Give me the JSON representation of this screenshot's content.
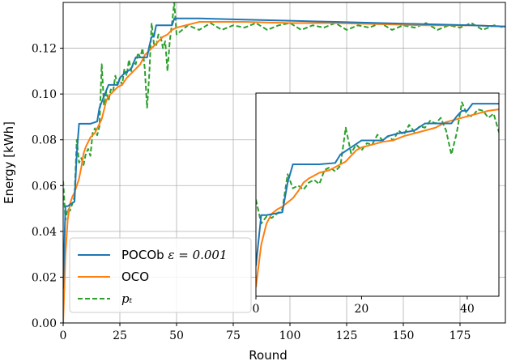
{
  "chart_data": {
    "type": "line",
    "xlabel": "Round",
    "ylabel": "Energy [kWh]",
    "xlim": [
      0,
      195
    ],
    "ylim": [
      0,
      0.14
    ],
    "xticks": [
      0,
      25,
      50,
      75,
      100,
      125,
      150,
      175
    ],
    "yticks": [
      0.0,
      0.02,
      0.04,
      0.06,
      0.08,
      0.1,
      0.12
    ],
    "ytick_labels": [
      "0.00",
      "0.02",
      "0.04",
      "0.06",
      "0.08",
      "0.10",
      "0.12"
    ],
    "grid": true,
    "legend": {
      "placement": "lower-left",
      "entries": [
        {
          "name": "POCOb ε = 0.001",
          "label_text": "POCOb",
          "label_math": "ε = 0.001",
          "color": "#1f77b4",
          "style": "solid"
        },
        {
          "name": "OCO",
          "label_text": "OCO",
          "label_math": "",
          "color": "#ff7f0e",
          "style": "solid"
        },
        {
          "name": "p_t",
          "label_text": "",
          "label_math": "pₜ",
          "color": "#2ca02c",
          "style": "dashed"
        }
      ]
    },
    "series": [
      {
        "name": "POCOb ε = 0.001",
        "color": "#1f77b4",
        "style": "solid",
        "x": [
          0,
          1,
          2,
          5,
          6,
          7,
          11,
          12,
          15,
          16,
          18,
          20,
          24,
          25,
          27,
          30,
          32,
          37,
          38,
          39,
          40,
          41,
          45,
          46,
          47,
          48,
          49,
          60,
          80,
          100,
          120,
          140,
          160,
          180,
          195
        ],
        "y": [
          0.015,
          0.051,
          0.051,
          0.053,
          0.074,
          0.087,
          0.087,
          0.087,
          0.088,
          0.094,
          0.099,
          0.104,
          0.104,
          0.107,
          0.109,
          0.111,
          0.116,
          0.116,
          0.121,
          0.125,
          0.125,
          0.13,
          0.13,
          0.13,
          0.13,
          0.13,
          0.133,
          0.133,
          0.1325,
          0.132,
          0.1315,
          0.131,
          0.1305,
          0.13,
          0.1295
        ]
      },
      {
        "name": "OCO",
        "color": "#ff7f0e",
        "style": "solid",
        "x": [
          0,
          1,
          2,
          3,
          4,
          5,
          6,
          7,
          8,
          9,
          10,
          11,
          12,
          13,
          14,
          15,
          16,
          17,
          18,
          19,
          20,
          22,
          24,
          26,
          28,
          30,
          32,
          34,
          36,
          38,
          40,
          42,
          44,
          46,
          48,
          50,
          60,
          80,
          100,
          120,
          140,
          160,
          180,
          195
        ],
        "y": [
          0.0,
          0.03,
          0.045,
          0.052,
          0.055,
          0.057,
          0.06,
          0.063,
          0.068,
          0.074,
          0.077,
          0.079,
          0.081,
          0.082,
          0.083,
          0.085,
          0.087,
          0.089,
          0.093,
          0.097,
          0.099,
          0.101,
          0.103,
          0.104,
          0.107,
          0.109,
          0.111,
          0.113,
          0.117,
          0.119,
          0.121,
          0.123,
          0.125,
          0.126,
          0.128,
          0.129,
          0.1315,
          0.1315,
          0.131,
          0.131,
          0.1305,
          0.13,
          0.13,
          0.1295
        ]
      },
      {
        "name": "p_t",
        "color": "#2ca02c",
        "style": "dashed",
        "x": [
          0,
          1,
          2,
          3,
          4,
          5,
          6,
          7,
          8,
          9,
          10,
          11,
          12,
          13,
          14,
          15,
          16,
          17,
          18,
          19,
          20,
          21,
          22,
          23,
          24,
          25,
          26,
          27,
          28,
          29,
          30,
          31,
          32,
          33,
          34,
          35,
          36,
          37,
          38,
          39,
          40,
          41,
          42,
          43,
          44,
          45,
          46,
          47,
          48,
          49,
          50,
          55,
          60,
          65,
          70,
          75,
          80,
          85,
          90,
          95,
          100,
          105,
          110,
          115,
          120,
          125,
          130,
          135,
          140,
          145,
          150,
          155,
          160,
          165,
          170,
          175,
          180,
          185,
          190,
          195
        ],
        "y": [
          0.062,
          0.045,
          0.05,
          0.049,
          0.052,
          0.055,
          0.08,
          0.07,
          0.072,
          0.069,
          0.074,
          0.076,
          0.073,
          0.083,
          0.085,
          0.082,
          0.086,
          0.113,
          0.095,
          0.101,
          0.097,
          0.102,
          0.101,
          0.108,
          0.104,
          0.107,
          0.104,
          0.111,
          0.108,
          0.115,
          0.11,
          0.114,
          0.113,
          0.118,
          0.116,
          0.12,
          0.111,
          0.094,
          0.109,
          0.131,
          0.122,
          0.121,
          0.126,
          0.125,
          0.12,
          0.123,
          0.11,
          0.123,
          0.131,
          0.14,
          0.126,
          0.13,
          0.128,
          0.131,
          0.128,
          0.13,
          0.129,
          0.131,
          0.128,
          0.13,
          0.131,
          0.128,
          0.13,
          0.129,
          0.131,
          0.128,
          0.13,
          0.129,
          0.131,
          0.128,
          0.13,
          0.129,
          0.131,
          0.128,
          0.13,
          0.129,
          0.131,
          0.128,
          0.13,
          0.129
        ]
      }
    ],
    "inset": {
      "xlim": [
        0,
        46
      ],
      "xticks": [
        0,
        20,
        40
      ],
      "placement": "lower-right"
    }
  }
}
